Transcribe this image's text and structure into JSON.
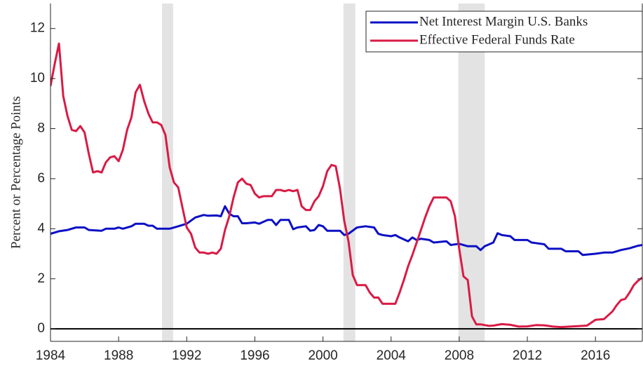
{
  "chart_data": {
    "type": "line",
    "y_label": "Percent or Percentage Points",
    "xlim": [
      1984,
      2018.75
    ],
    "xticks": [
      1984,
      1988,
      1992,
      1996,
      2000,
      2004,
      2008,
      2012,
      2016
    ],
    "ylim": [
      -0.5,
      13
    ],
    "yticks": [
      0,
      2,
      4,
      6,
      8,
      10,
      12
    ],
    "legend": "upper right",
    "recessions": [
      [
        1990.55,
        1991.2
      ],
      [
        2001.2,
        2001.9
      ],
      [
        2007.95,
        2009.5
      ]
    ],
    "recession_color": "#e3e3e3",
    "series": [
      {
        "name": "Net Interest Margin U.S. Banks",
        "color": "#0c10c4",
        "x": [
          1984,
          1984.5,
          1985,
          1985.5,
          1986,
          1986.25,
          1987,
          1987.25,
          1987.75,
          1988,
          1988.25,
          1988.75,
          1989,
          1989.5,
          1989.75,
          1990,
          1990.25,
          1991,
          1991.5,
          1992,
          1992.5,
          1993,
          1993.25,
          1993.75,
          1994,
          1994.25,
          1994.5,
          1994.75,
          1995,
          1995.25,
          1995.5,
          1996,
          1996.25,
          1996.75,
          1997,
          1997.25,
          1997.5,
          1998,
          1998.25,
          1998.5,
          1999,
          1999.25,
          1999.5,
          1999.75,
          2000,
          2000.25,
          2000.5,
          2001,
          2001.25,
          2001.5,
          2002,
          2002.5,
          2003,
          2003.25,
          2003.5,
          2004,
          2004.25,
          2004.5,
          2005,
          2005.25,
          2005.5,
          2005.75,
          2006.25,
          2006.5,
          2007.25,
          2007.5,
          2008,
          2008.5,
          2009,
          2009.25,
          2009.5,
          2010,
          2010.25,
          2010.5,
          2011,
          2011.25,
          2012,
          2012.25,
          2013,
          2013.25,
          2014,
          2014.25,
          2015,
          2015.25,
          2016,
          2016.5,
          2017,
          2017.5,
          2018,
          2018.5,
          2018.75
        ],
        "values": [
          3.8,
          3.9,
          3.95,
          4.05,
          4.05,
          3.95,
          3.92,
          4.0,
          4.0,
          4.05,
          4.0,
          4.1,
          4.2,
          4.2,
          4.12,
          4.12,
          4.0,
          4.0,
          4.1,
          4.2,
          4.45,
          4.55,
          4.52,
          4.53,
          4.5,
          4.9,
          4.6,
          4.5,
          4.5,
          4.22,
          4.22,
          4.25,
          4.2,
          4.35,
          4.35,
          4.15,
          4.35,
          4.35,
          3.98,
          4.05,
          4.1,
          3.92,
          3.95,
          4.15,
          4.1,
          3.92,
          3.92,
          3.92,
          3.75,
          3.8,
          4.05,
          4.1,
          4.05,
          3.8,
          3.75,
          3.7,
          3.75,
          3.65,
          3.5,
          3.65,
          3.55,
          3.6,
          3.55,
          3.45,
          3.5,
          3.35,
          3.4,
          3.3,
          3.3,
          3.15,
          3.3,
          3.45,
          3.82,
          3.75,
          3.7,
          3.55,
          3.55,
          3.45,
          3.38,
          3.2,
          3.2,
          3.1,
          3.1,
          2.95,
          3.0,
          3.05,
          3.05,
          3.15,
          3.22,
          3.32,
          3.35
        ]
      },
      {
        "name": "Effective Federal Funds Rate",
        "color": "#d81b45",
        "x": [
          1984,
          1984.25,
          1984.5,
          1984.75,
          1985,
          1985.25,
          1985.5,
          1985.75,
          1986,
          1986.25,
          1986.5,
          1986.75,
          1987,
          1987.25,
          1987.5,
          1987.75,
          1988,
          1988.25,
          1988.5,
          1988.75,
          1989,
          1989.25,
          1989.5,
          1989.75,
          1990,
          1990.25,
          1990.5,
          1990.75,
          1991,
          1991.25,
          1991.5,
          1991.75,
          1992,
          1992.25,
          1992.5,
          1992.75,
          1993,
          1993.25,
          1993.5,
          1993.75,
          1994,
          1994.25,
          1994.5,
          1994.75,
          1995,
          1995.25,
          1995.5,
          1995.75,
          1996,
          1996.25,
          1996.5,
          1996.75,
          1997,
          1997.25,
          1997.5,
          1997.75,
          1998,
          1998.25,
          1998.5,
          1998.75,
          1999,
          1999.25,
          1999.5,
          1999.75,
          2000,
          2000.25,
          2000.5,
          2000.75,
          2001,
          2001.25,
          2001.5,
          2001.75,
          2002,
          2002.25,
          2002.5,
          2002.75,
          2003,
          2003.25,
          2003.5,
          2003.75,
          2004,
          2004.25,
          2004.5,
          2004.75,
          2005,
          2005.25,
          2005.5,
          2005.75,
          2006,
          2006.25,
          2006.5,
          2006.75,
          2007,
          2007.25,
          2007.5,
          2007.75,
          2008,
          2008.25,
          2008.5,
          2008.75,
          2009,
          2009.25,
          2009.5,
          2009.75,
          2010,
          2010.5,
          2011,
          2011.5,
          2012,
          2012.5,
          2013,
          2013.5,
          2014,
          2014.5,
          2015,
          2015.5,
          2016,
          2016.5,
          2017,
          2017.25,
          2017.5,
          2017.75,
          2018,
          2018.25,
          2018.5,
          2018.75
        ],
        "values": [
          9.7,
          10.6,
          11.4,
          9.3,
          8.5,
          7.95,
          7.9,
          8.1,
          7.85,
          7.0,
          6.25,
          6.3,
          6.25,
          6.65,
          6.85,
          6.9,
          6.7,
          7.15,
          7.95,
          8.45,
          9.45,
          9.75,
          9.1,
          8.6,
          8.25,
          8.25,
          8.15,
          7.75,
          6.45,
          5.85,
          5.65,
          4.85,
          4.05,
          3.8,
          3.25,
          3.05,
          3.05,
          3.0,
          3.05,
          3.0,
          3.2,
          3.95,
          4.5,
          5.25,
          5.85,
          6.0,
          5.8,
          5.75,
          5.4,
          5.25,
          5.3,
          5.3,
          5.3,
          5.55,
          5.55,
          5.5,
          5.55,
          5.5,
          5.55,
          4.9,
          4.75,
          4.75,
          5.1,
          5.3,
          5.7,
          6.3,
          6.55,
          6.5,
          5.6,
          4.3,
          3.5,
          2.15,
          1.75,
          1.75,
          1.75,
          1.45,
          1.25,
          1.25,
          1.0,
          1.0,
          1.0,
          1.0,
          1.45,
          1.95,
          2.5,
          2.95,
          3.45,
          3.95,
          4.45,
          4.9,
          5.25,
          5.25,
          5.25,
          5.25,
          5.1,
          4.5,
          3.2,
          2.1,
          1.95,
          0.5,
          0.18,
          0.18,
          0.15,
          0.12,
          0.13,
          0.19,
          0.16,
          0.09,
          0.1,
          0.15,
          0.14,
          0.09,
          0.07,
          0.09,
          0.11,
          0.13,
          0.36,
          0.39,
          0.7,
          0.95,
          1.15,
          1.2,
          1.45,
          1.75,
          1.92,
          2.05
        ]
      }
    ]
  }
}
